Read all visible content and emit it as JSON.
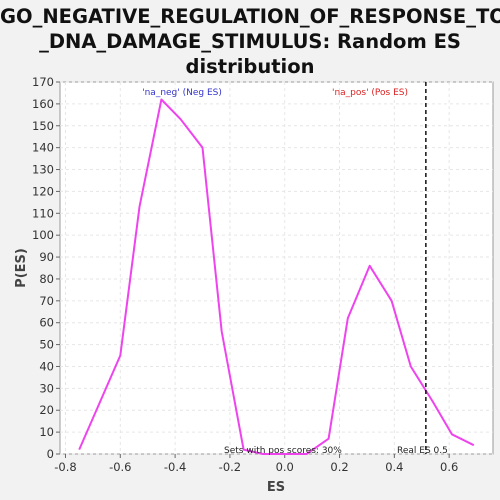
{
  "chart_data": {
    "type": "line",
    "title_lines": [
      "GO_NEGATIVE_REGULATION_OF_RESPONSE_TO",
      "_DNA_DAMAGE_STIMULUS: Random ES",
      "distribution"
    ],
    "xlabel": "ES",
    "ylabel": "P(ES)",
    "xlim": [
      -0.82,
      0.76
    ],
    "ylim": [
      0,
      170
    ],
    "xticks": [
      -0.8,
      -0.6,
      -0.4,
      -0.2,
      0.0,
      0.2,
      0.4,
      0.6
    ],
    "xtick_labels": [
      "-0.8",
      "-0.6",
      "-0.4",
      "-0.2",
      "0.0",
      "0.2",
      "0.4",
      "0.6"
    ],
    "yticks": [
      0,
      10,
      20,
      30,
      40,
      50,
      60,
      70,
      80,
      90,
      100,
      110,
      120,
      130,
      140,
      150,
      160,
      170
    ],
    "grid": true,
    "series": [
      {
        "color": "#ee44ee",
        "x": [
          -0.75,
          -0.6,
          -0.53,
          -0.45,
          -0.38,
          -0.3,
          -0.23,
          -0.15,
          -0.08,
          0.0,
          0.08,
          0.16,
          0.23,
          0.31,
          0.39,
          0.46,
          0.54,
          0.61,
          0.69
        ],
        "y": [
          2,
          45,
          113,
          162,
          153,
          140,
          56,
          2,
          0,
          0,
          0,
          7,
          62,
          86,
          70,
          40,
          24,
          9,
          4
        ]
      }
    ],
    "annotations": {
      "neg_label": "'na_neg' (Neg ES)",
      "neg_color": "#3333cc",
      "pos_label": "'na_pos' (Pos ES)",
      "pos_color": "#dd2222",
      "real_es_x": 0.515,
      "real_es_label": "Real ES 0.5",
      "pos_scores_label": "Sets with pos scores: 30%"
    }
  }
}
